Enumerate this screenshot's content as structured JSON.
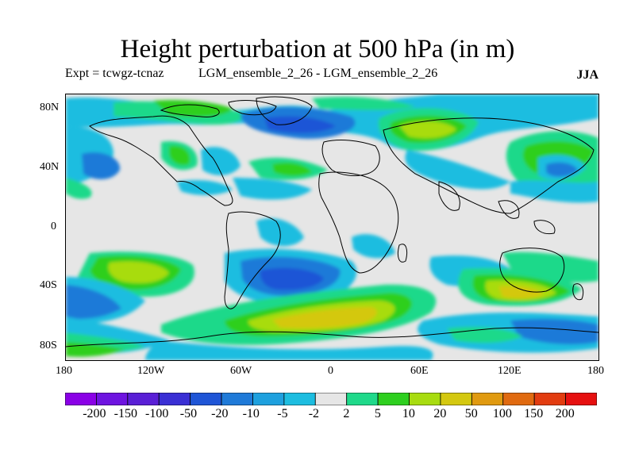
{
  "title": "Height perturbation at 500 hPa (in m)",
  "subtitle": {
    "experiment": "Expt = tcwgz-tcnaz",
    "comparison": "LGM_ensemble_2_26 - LGM_ensemble_2_26",
    "season": "JJA"
  },
  "axes": {
    "lat_labels": [
      "80N",
      "40N",
      "0",
      "40S",
      "80S"
    ],
    "lon_labels": [
      "180",
      "120W",
      "60W",
      "0",
      "60E",
      "120E",
      "180"
    ]
  },
  "colorbar": {
    "labels": [
      "-200",
      "-150",
      "-100",
      "-50",
      "-20",
      "-10",
      "-5",
      "-2",
      "2",
      "5",
      "10",
      "20",
      "50",
      "100",
      "150",
      "200"
    ],
    "colors": [
      "#8a00e6",
      "#6e14e0",
      "#5a1fd6",
      "#3a2fd4",
      "#1f55d6",
      "#1f7ad8",
      "#1ea0de",
      "#1dbde0",
      "#e6e6e6",
      "#1fd98a",
      "#2ecf1f",
      "#a8dc10",
      "#d4c810",
      "#e09a10",
      "#e06a10",
      "#e23c10",
      "#e61010"
    ]
  },
  "icons": {
    "map": "world-map-contour"
  }
}
